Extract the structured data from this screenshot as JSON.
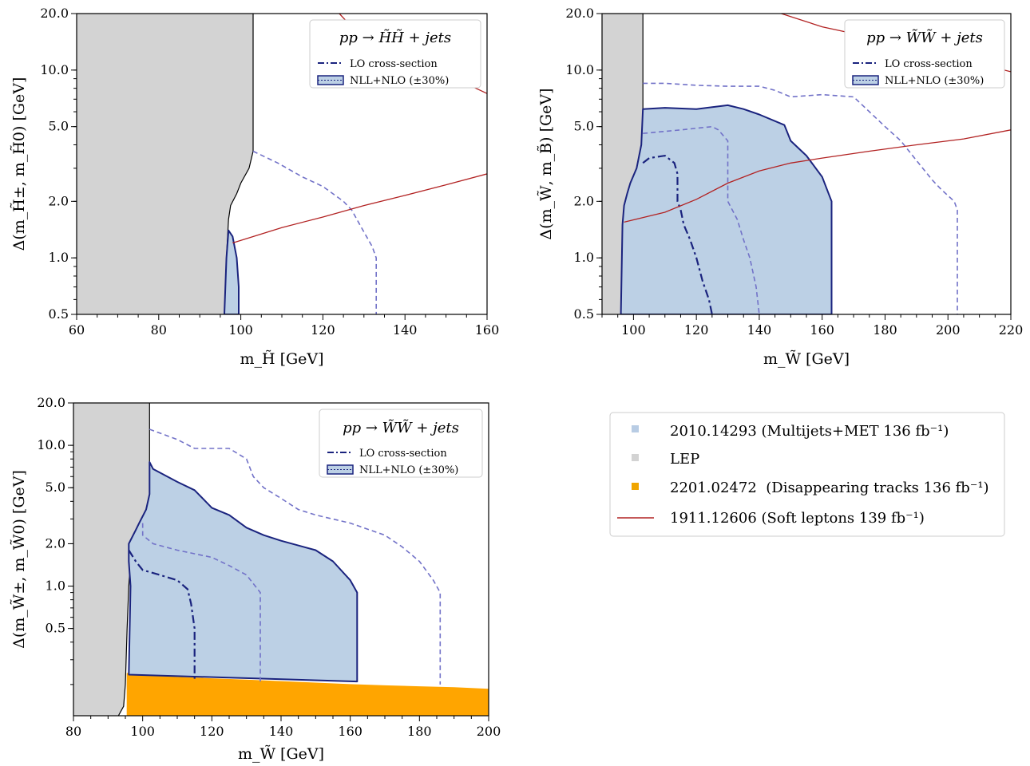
{
  "chart_data": [
    {
      "type": "area",
      "title": "pp → H̃H̃ + jets",
      "xlabel": "m_H̃ [GeV]",
      "ylabel": "Δ(m_H̃±, m_H̃0) [GeV]",
      "xlim": [
        60,
        160
      ],
      "ylim": [
        0.5,
        20.0
      ],
      "yscale": "log",
      "x_ticks": [
        60,
        80,
        100,
        120,
        140,
        160
      ],
      "y_ticks": [
        0.5,
        1.0,
        2.0,
        5.0,
        10.0,
        20.0
      ],
      "y_tick_labels": [
        "0.5",
        "1.0",
        "2.0",
        "5.0",
        "10.0",
        "20.0"
      ],
      "legend": {
        "position": "top-right",
        "entries": [
          "LO cross-section",
          "NLL+NLO (±30%)"
        ]
      },
      "series": [
        {
          "name": "LEP",
          "kind": "region",
          "boundary": [
            [
              103,
              20
            ],
            [
              103,
              3.7
            ],
            [
              102,
              3
            ],
            [
              100,
              2.5
            ],
            [
              99,
              2.2
            ],
            [
              97.5,
              1.9
            ],
            [
              97,
              1.6
            ],
            [
              96.5,
              1
            ],
            [
              96,
              0.5
            ]
          ]
        },
        {
          "name": "NLL+NLO (±30%)",
          "kind": "region",
          "boundary": [
            [
              97,
              1.4
            ],
            [
              98,
              1.3
            ],
            [
              99,
              1.0
            ],
            [
              99.5,
              0.7
            ],
            [
              99.5,
              0.5
            ],
            [
              96,
              0.5
            ],
            [
              96.5,
              1
            ],
            [
              97,
              1.4
            ]
          ]
        },
        {
          "name": "NLL+NLO -30%",
          "kind": "dashed",
          "points": [
            [
              103,
              3.7
            ],
            [
              109,
              3.2
            ],
            [
              115,
              2.7
            ],
            [
              120,
              2.4
            ],
            [
              125,
              2.0
            ],
            [
              127,
              1.8
            ],
            [
              129,
              1.5
            ],
            [
              132,
              1.15
            ],
            [
              133,
              1.0
            ],
            [
              133,
              0.5
            ]
          ]
        },
        {
          "name": "1911.12606 (Soft leptons 139 fb⁻¹)",
          "kind": "line",
          "segment": "upper",
          "points": [
            [
              124,
              20
            ],
            [
              127,
              17
            ],
            [
              132,
              15
            ],
            [
              140,
              12
            ],
            [
              150,
              9.5
            ],
            [
              160,
              7.5
            ]
          ]
        },
        {
          "name": "1911.12606 (Soft leptons 139 fb⁻¹)",
          "kind": "line",
          "segment": "lower",
          "points": [
            [
              98,
              1.2
            ],
            [
              110,
              1.45
            ],
            [
              120,
              1.65
            ],
            [
              130,
              1.9
            ],
            [
              140,
              2.15
            ],
            [
              150,
              2.45
            ],
            [
              160,
              2.8
            ]
          ]
        }
      ]
    },
    {
      "type": "area",
      "title": "pp → W̃W̃ + jets",
      "xlabel": "m_W̃ [GeV]",
      "ylabel": "Δ(m_W̃, m_B̃) [GeV]",
      "xlim": [
        90,
        220
      ],
      "ylim": [
        0.5,
        20.0
      ],
      "yscale": "log",
      "x_ticks": [
        100,
        120,
        140,
        160,
        180,
        200,
        220
      ],
      "y_ticks": [
        0.5,
        1.0,
        2.0,
        5.0,
        10.0,
        20.0
      ],
      "y_tick_labels": [
        "0.5",
        "1.0",
        "2.0",
        "5.0",
        "10.0",
        "20.0"
      ],
      "legend": {
        "position": "top-right",
        "entries": [
          "LO cross-section",
          "NLL+NLO (±30%)"
        ]
      },
      "series": [
        {
          "name": "LEP",
          "kind": "region",
          "boundary": [
            [
              103,
              20
            ],
            [
              103,
              6
            ],
            [
              102.5,
              4
            ],
            [
              101,
              3
            ],
            [
              99,
              2.5
            ],
            [
              98,
              2.2
            ],
            [
              97,
              1.9
            ],
            [
              96.5,
              1.5
            ],
            [
              96,
              0.5
            ]
          ]
        },
        {
          "name": "NLL+NLO (±30%)",
          "kind": "region",
          "boundary": [
            [
              103,
              6.2
            ],
            [
              110,
              6.3
            ],
            [
              120,
              6.2
            ],
            [
              130,
              6.5
            ],
            [
              135,
              6.2
            ],
            [
              140,
              5.8
            ],
            [
              148,
              5.1
            ],
            [
              150,
              4.2
            ],
            [
              155,
              3.5
            ],
            [
              160,
              2.7
            ],
            [
              163,
              2.0
            ],
            [
              163,
              0.5
            ],
            [
              96,
              0.5
            ],
            [
              96.5,
              1.5
            ],
            [
              97,
              1.9
            ],
            [
              98,
              2.2
            ],
            [
              99,
              2.5
            ],
            [
              101,
              3
            ],
            [
              102.5,
              4
            ],
            [
              103,
              6.2
            ]
          ]
        },
        {
          "name": "NLL+NLO +30%",
          "kind": "dashed",
          "points": [
            [
              103,
              8.5
            ],
            [
              110,
              8.5
            ],
            [
              120,
              8.3
            ],
            [
              130,
              8.2
            ],
            [
              140,
              8.2
            ],
            [
              145,
              7.8
            ],
            [
              150,
              7.2
            ],
            [
              160,
              7.4
            ],
            [
              170,
              7.2
            ],
            [
              175,
              6
            ],
            [
              180,
              5
            ],
            [
              185,
              4.2
            ],
            [
              190,
              3.3
            ],
            [
              195,
              2.6
            ],
            [
              198,
              2.3
            ],
            [
              202,
              2.0
            ],
            [
              203,
              1.8
            ],
            [
              203,
              0.5
            ]
          ]
        },
        {
          "name": "NLL+NLO -30%",
          "kind": "dashed",
          "points": [
            [
              103,
              4.6
            ],
            [
              115,
              4.8
            ],
            [
              125,
              5.0
            ],
            [
              127,
              4.8
            ],
            [
              130,
              4.2
            ],
            [
              130,
              2.0
            ],
            [
              133,
              1.6
            ],
            [
              135,
              1.25
            ],
            [
              137,
              1.0
            ],
            [
              139,
              0.7
            ],
            [
              140,
              0.5
            ]
          ]
        },
        {
          "name": "LO cross-section",
          "kind": "dashdot",
          "points": [
            [
              103,
              3.2
            ],
            [
              105,
              3.4
            ],
            [
              110,
              3.5
            ],
            [
              113,
              3.2
            ],
            [
              114,
              2.8
            ],
            [
              114,
              2.0
            ],
            [
              115,
              1.8
            ],
            [
              116,
              1.5
            ],
            [
              118,
              1.25
            ],
            [
              120,
              1.0
            ],
            [
              122,
              0.75
            ],
            [
              124,
              0.6
            ],
            [
              125,
              0.5
            ]
          ]
        },
        {
          "name": "1911.12606 (Soft leptons 139 fb⁻¹)",
          "kind": "line",
          "segment": "upper",
          "points": [
            [
              147,
              20
            ],
            [
              160,
              17
            ],
            [
              175,
              15
            ],
            [
              190,
              13
            ],
            [
              200,
              12
            ],
            [
              210,
              10.8
            ],
            [
              220,
              9.8
            ]
          ]
        },
        {
          "name": "1911.12606 (Soft leptons 139 fb⁻¹)",
          "kind": "line",
          "segment": "lower",
          "points": [
            [
              97,
              1.55
            ],
            [
              110,
              1.75
            ],
            [
              120,
              2.05
            ],
            [
              130,
              2.5
            ],
            [
              140,
              2.9
            ],
            [
              150,
              3.2
            ],
            [
              160,
              3.4
            ],
            [
              175,
              3.7
            ],
            [
              190,
              4.0
            ],
            [
              205,
              4.3
            ],
            [
              220,
              4.8
            ]
          ]
        }
      ]
    },
    {
      "type": "area",
      "title": "pp → W̃W̃ + jets",
      "xlabel": "m_W̃ [GeV]",
      "ylabel": "Δ(m_W̃±, m_W̃0) [GeV]",
      "xlim": [
        80,
        200
      ],
      "ylim": [
        0.12,
        20.0
      ],
      "yscale": "log",
      "x_ticks": [
        80,
        100,
        120,
        140,
        160,
        180,
        200
      ],
      "y_ticks": [
        0.5,
        1.0,
        2.0,
        5.0,
        10.0,
        20.0
      ],
      "y_tick_labels": [
        "0.5",
        "1.0",
        "2.0",
        "5.0",
        "10.0",
        "20.0"
      ],
      "legend": {
        "position": "top-right",
        "entries": [
          "LO cross-section",
          "NLL+NLO (±30%)"
        ]
      },
      "series": [
        {
          "name": "LEP",
          "kind": "region",
          "boundary": [
            [
              102,
              20
            ],
            [
              102,
              4.5
            ],
            [
              101,
              3.5
            ],
            [
              99,
              2.8
            ],
            [
              98,
              2.5
            ],
            [
              96,
              2.0
            ],
            [
              96.5,
              1.5
            ],
            [
              96,
              1.0
            ],
            [
              95.5,
              0.5
            ],
            [
              95,
              0.2
            ],
            [
              94.5,
              0.14
            ],
            [
              93,
              0.12
            ]
          ]
        },
        {
          "name": "2201.02472 (Disappearing tracks 136 fb⁻¹)",
          "kind": "region",
          "boundary": [
            [
              95.5,
              0.12
            ],
            [
              95.5,
              0.24
            ],
            [
              100,
              0.235
            ],
            [
              110,
              0.225
            ],
            [
              120,
              0.22
            ],
            [
              130,
              0.215
            ],
            [
              140,
              0.21
            ],
            [
              150,
              0.205
            ],
            [
              160,
              0.2
            ],
            [
              170,
              0.196
            ],
            [
              180,
              0.193
            ],
            [
              190,
              0.19
            ],
            [
              200,
              0.185
            ],
            [
              200,
              0.12
            ]
          ]
        },
        {
          "name": "NLL+NLO (±30%)",
          "kind": "region",
          "boundary": [
            [
              102,
              7.6
            ],
            [
              103,
              6.8
            ],
            [
              110,
              5.5
            ],
            [
              115,
              4.8
            ],
            [
              120,
              3.6
            ],
            [
              125,
              3.2
            ],
            [
              130,
              2.6
            ],
            [
              135,
              2.3
            ],
            [
              140,
              2.1
            ],
            [
              150,
              1.8
            ],
            [
              155,
              1.5
            ],
            [
              160,
              1.1
            ],
            [
              162,
              0.9
            ],
            [
              162,
              0.21
            ],
            [
              96,
              0.235
            ],
            [
              96.5,
              1.0
            ],
            [
              96,
              1.5
            ],
            [
              96,
              2.0
            ],
            [
              98,
              2.5
            ],
            [
              99,
              2.8
            ],
            [
              101,
              3.5
            ],
            [
              102,
              4.5
            ],
            [
              102,
              7.6
            ]
          ]
        },
        {
          "name": "NLL+NLO +30%",
          "kind": "dashed",
          "points": [
            [
              102,
              13
            ],
            [
              110,
              11
            ],
            [
              115,
              9.5
            ],
            [
              125,
              9.5
            ],
            [
              130,
              8
            ],
            [
              132,
              6
            ],
            [
              135,
              5
            ],
            [
              140,
              4.2
            ],
            [
              145,
              3.5
            ],
            [
              150,
              3.2
            ],
            [
              160,
              2.8
            ],
            [
              170,
              2.3
            ],
            [
              175,
              1.9
            ],
            [
              180,
              1.5
            ],
            [
              184,
              1.1
            ],
            [
              186,
              0.9
            ],
            [
              186,
              0.2
            ]
          ]
        },
        {
          "name": "NLL+NLO -30%",
          "kind": "dashed",
          "points": [
            [
              100,
              2.8
            ],
            [
              100,
              2.3
            ],
            [
              103,
              2.0
            ],
            [
              110,
              1.8
            ],
            [
              120,
              1.6
            ],
            [
              125,
              1.4
            ],
            [
              130,
              1.2
            ],
            [
              134,
              0.9
            ],
            [
              134,
              0.21
            ]
          ]
        },
        {
          "name": "LO cross-section",
          "kind": "dashdot",
          "points": [
            [
              96,
              1.8
            ],
            [
              98,
              1.5
            ],
            [
              100,
              1.3
            ],
            [
              105,
              1.2
            ],
            [
              110,
              1.1
            ],
            [
              113,
              0.95
            ],
            [
              114,
              0.75
            ],
            [
              115,
              0.5
            ],
            [
              115,
              0.22
            ]
          ]
        }
      ]
    }
  ],
  "combined_legend": [
    {
      "label": "2010.14293 (Multijets+MET 136 fb⁻¹)",
      "symbol": "square",
      "color": "#b8cce4"
    },
    {
      "label": "LEP",
      "symbol": "square",
      "color": "#d3d3d3"
    },
    {
      "label": "2201.02472  (Disappearing tracks 136 fb⁻¹)",
      "symbol": "square",
      "color": "#f0a500"
    },
    {
      "label": "1911.12606 (Soft leptons 139 fb⁻¹)",
      "symbol": "line",
      "color": "#b22222"
    }
  ],
  "colors": {
    "lep": "#d3d3d3",
    "multijets_fill": "#bcd0e5",
    "multijets_line": "#1a237e",
    "dashed": "#7272c8",
    "soft_leptons": "#b22222",
    "disappearing": "#ffa500"
  }
}
